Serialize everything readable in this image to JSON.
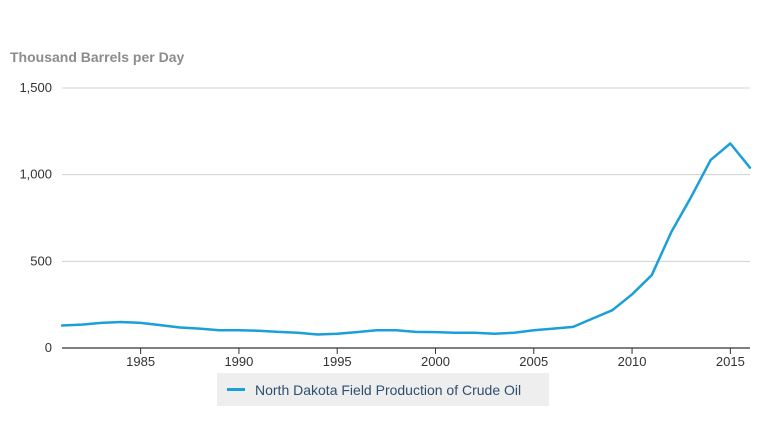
{
  "chart_data": {
    "type": "line",
    "ylabel": "Thousand Barrels per Day",
    "xlabel": "",
    "title": "",
    "ylim": [
      0,
      1500
    ],
    "xlim": [
      1981,
      2016
    ],
    "yticks": [
      0,
      500,
      1000,
      1500
    ],
    "ytick_labels": [
      "0",
      "500",
      "1,000",
      "1,500"
    ],
    "xticks": [
      1985,
      1990,
      1995,
      2000,
      2005,
      2010,
      2015
    ],
    "xtick_labels": [
      "1985",
      "1990",
      "1995",
      "2000",
      "2005",
      "2010",
      "2015"
    ],
    "grid": true,
    "legend_position": "bottom",
    "series": [
      {
        "name": "North Dakota Field Production of Crude Oil",
        "color": "#1a9fd9",
        "x": [
          1981,
          1982,
          1983,
          1984,
          1985,
          1986,
          1987,
          1988,
          1989,
          1990,
          1991,
          1992,
          1993,
          1994,
          1995,
          1996,
          1997,
          1998,
          1999,
          2000,
          2001,
          2002,
          2003,
          2004,
          2005,
          2006,
          2007,
          2008,
          2009,
          2010,
          2011,
          2012,
          2013,
          2014,
          2015,
          2016
        ],
        "values": [
          130,
          135,
          145,
          150,
          145,
          132,
          118,
          112,
          102,
          102,
          100,
          93,
          88,
          78,
          82,
          92,
          102,
          102,
          93,
          92,
          88,
          88,
          82,
          88,
          102,
          112,
          122,
          170,
          218,
          310,
          420,
          670,
          870,
          1085,
          1180,
          1040
        ]
      }
    ]
  }
}
